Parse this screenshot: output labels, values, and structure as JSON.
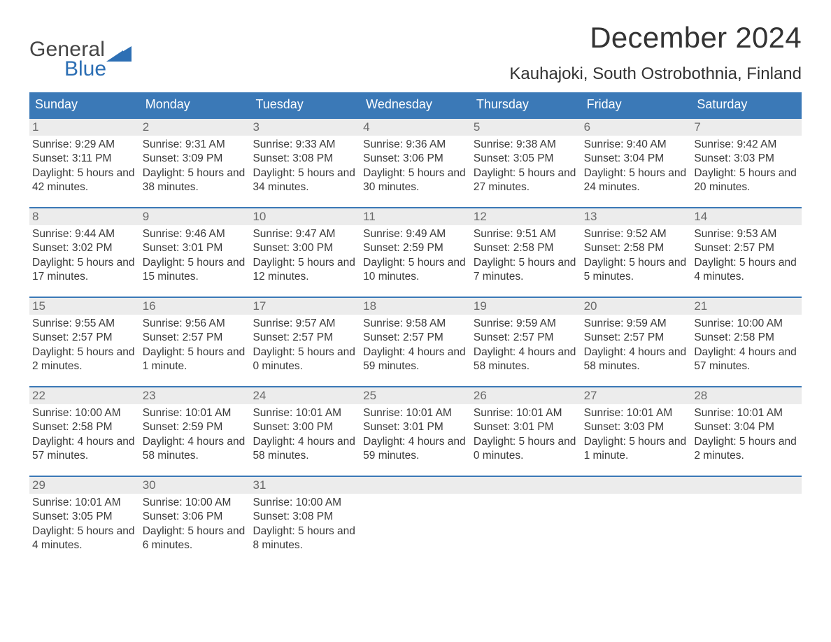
{
  "brand": {
    "part1": "General",
    "part2": "Blue",
    "sail_color": "#2d6fb4"
  },
  "title": "December 2024",
  "location": "Kauhajoki, South Ostrobothnia, Finland",
  "colors": {
    "header_bg": "#3b79b7",
    "header_text": "#ffffff",
    "daynum_bg": "#ececec",
    "daynum_text": "#6a6a6a",
    "body_text": "#3a3a3a",
    "rule": "#3b79b7",
    "page_bg": "#ffffff"
  },
  "typography": {
    "title_fontsize": 42,
    "location_fontsize": 24,
    "weekday_fontsize": 18,
    "daynum_fontsize": 17,
    "detail_fontsize": 15.5
  },
  "weekdays": [
    "Sunday",
    "Monday",
    "Tuesday",
    "Wednesday",
    "Thursday",
    "Friday",
    "Saturday"
  ],
  "weeks": [
    [
      {
        "n": "1",
        "sunrise": "9:29 AM",
        "sunset": "3:11 PM",
        "daylight": "5 hours and 42 minutes."
      },
      {
        "n": "2",
        "sunrise": "9:31 AM",
        "sunset": "3:09 PM",
        "daylight": "5 hours and 38 minutes."
      },
      {
        "n": "3",
        "sunrise": "9:33 AM",
        "sunset": "3:08 PM",
        "daylight": "5 hours and 34 minutes."
      },
      {
        "n": "4",
        "sunrise": "9:36 AM",
        "sunset": "3:06 PM",
        "daylight": "5 hours and 30 minutes."
      },
      {
        "n": "5",
        "sunrise": "9:38 AM",
        "sunset": "3:05 PM",
        "daylight": "5 hours and 27 minutes."
      },
      {
        "n": "6",
        "sunrise": "9:40 AM",
        "sunset": "3:04 PM",
        "daylight": "5 hours and 24 minutes."
      },
      {
        "n": "7",
        "sunrise": "9:42 AM",
        "sunset": "3:03 PM",
        "daylight": "5 hours and 20 minutes."
      }
    ],
    [
      {
        "n": "8",
        "sunrise": "9:44 AM",
        "sunset": "3:02 PM",
        "daylight": "5 hours and 17 minutes."
      },
      {
        "n": "9",
        "sunrise": "9:46 AM",
        "sunset": "3:01 PM",
        "daylight": "5 hours and 15 minutes."
      },
      {
        "n": "10",
        "sunrise": "9:47 AM",
        "sunset": "3:00 PM",
        "daylight": "5 hours and 12 minutes."
      },
      {
        "n": "11",
        "sunrise": "9:49 AM",
        "sunset": "2:59 PM",
        "daylight": "5 hours and 10 minutes."
      },
      {
        "n": "12",
        "sunrise": "9:51 AM",
        "sunset": "2:58 PM",
        "daylight": "5 hours and 7 minutes."
      },
      {
        "n": "13",
        "sunrise": "9:52 AM",
        "sunset": "2:58 PM",
        "daylight": "5 hours and 5 minutes."
      },
      {
        "n": "14",
        "sunrise": "9:53 AM",
        "sunset": "2:57 PM",
        "daylight": "5 hours and 4 minutes."
      }
    ],
    [
      {
        "n": "15",
        "sunrise": "9:55 AM",
        "sunset": "2:57 PM",
        "daylight": "5 hours and 2 minutes."
      },
      {
        "n": "16",
        "sunrise": "9:56 AM",
        "sunset": "2:57 PM",
        "daylight": "5 hours and 1 minute."
      },
      {
        "n": "17",
        "sunrise": "9:57 AM",
        "sunset": "2:57 PM",
        "daylight": "5 hours and 0 minutes."
      },
      {
        "n": "18",
        "sunrise": "9:58 AM",
        "sunset": "2:57 PM",
        "daylight": "4 hours and 59 minutes."
      },
      {
        "n": "19",
        "sunrise": "9:59 AM",
        "sunset": "2:57 PM",
        "daylight": "4 hours and 58 minutes."
      },
      {
        "n": "20",
        "sunrise": "9:59 AM",
        "sunset": "2:57 PM",
        "daylight": "4 hours and 58 minutes."
      },
      {
        "n": "21",
        "sunrise": "10:00 AM",
        "sunset": "2:58 PM",
        "daylight": "4 hours and 57 minutes."
      }
    ],
    [
      {
        "n": "22",
        "sunrise": "10:00 AM",
        "sunset": "2:58 PM",
        "daylight": "4 hours and 57 minutes."
      },
      {
        "n": "23",
        "sunrise": "10:01 AM",
        "sunset": "2:59 PM",
        "daylight": "4 hours and 58 minutes."
      },
      {
        "n": "24",
        "sunrise": "10:01 AM",
        "sunset": "3:00 PM",
        "daylight": "4 hours and 58 minutes."
      },
      {
        "n": "25",
        "sunrise": "10:01 AM",
        "sunset": "3:01 PM",
        "daylight": "4 hours and 59 minutes."
      },
      {
        "n": "26",
        "sunrise": "10:01 AM",
        "sunset": "3:01 PM",
        "daylight": "5 hours and 0 minutes."
      },
      {
        "n": "27",
        "sunrise": "10:01 AM",
        "sunset": "3:03 PM",
        "daylight": "5 hours and 1 minute."
      },
      {
        "n": "28",
        "sunrise": "10:01 AM",
        "sunset": "3:04 PM",
        "daylight": "5 hours and 2 minutes."
      }
    ],
    [
      {
        "n": "29",
        "sunrise": "10:01 AM",
        "sunset": "3:05 PM",
        "daylight": "5 hours and 4 minutes."
      },
      {
        "n": "30",
        "sunrise": "10:00 AM",
        "sunset": "3:06 PM",
        "daylight": "5 hours and 6 minutes."
      },
      {
        "n": "31",
        "sunrise": "10:00 AM",
        "sunset": "3:08 PM",
        "daylight": "5 hours and 8 minutes."
      },
      null,
      null,
      null,
      null
    ]
  ],
  "labels": {
    "sunrise_prefix": "Sunrise: ",
    "sunset_prefix": "Sunset: ",
    "daylight_prefix": "Daylight: "
  }
}
